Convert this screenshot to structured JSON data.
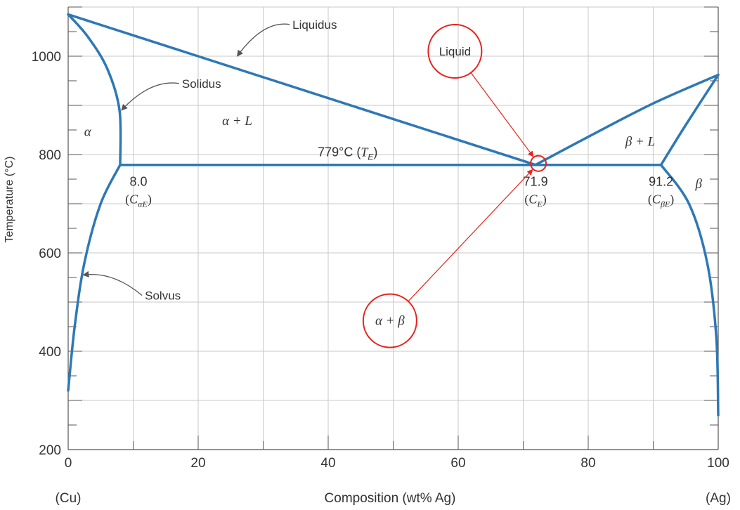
{
  "chart_data": {
    "type": "phase-diagram",
    "title": "",
    "xlabel": "Composition (wt% Ag)",
    "ylabel": "Temperature (°C)",
    "xlim": [
      0,
      100
    ],
    "ylim": [
      200,
      1100
    ],
    "x_ticks": [
      0,
      20,
      40,
      60,
      80,
      100
    ],
    "y_ticks": [
      200,
      400,
      600,
      800,
      1000
    ],
    "x_end_labels": {
      "left": "(Cu)",
      "right": "(Ag)"
    },
    "grid": true,
    "line_color": "#2e78b5",
    "annotation_color": "#e8221b",
    "curves": [
      {
        "name": "liquidus-left",
        "points": [
          [
            0,
            1085
          ],
          [
            71.9,
            779
          ]
        ]
      },
      {
        "name": "liquidus-right",
        "points": [
          [
            71.9,
            779
          ],
          [
            80,
            836
          ],
          [
            90,
            904
          ],
          [
            100,
            962
          ]
        ]
      },
      {
        "name": "solidus-alpha",
        "points": [
          [
            0,
            1085
          ],
          [
            3,
            1040
          ],
          [
            6,
            975
          ],
          [
            7.9,
            890
          ],
          [
            8.0,
            779
          ]
        ]
      },
      {
        "name": "solvus-alpha",
        "points": [
          [
            8.0,
            779
          ],
          [
            5,
            700
          ],
          [
            2.5,
            580
          ],
          [
            1,
            450
          ],
          [
            0,
            320
          ]
        ]
      },
      {
        "name": "eutectic-isotherm",
        "points": [
          [
            8.0,
            779
          ],
          [
            91.2,
            779
          ]
        ]
      },
      {
        "name": "solidus-beta",
        "points": [
          [
            91.2,
            779
          ],
          [
            95,
            860
          ],
          [
            100,
            962
          ]
        ]
      },
      {
        "name": "solvus-beta",
        "points": [
          [
            91.2,
            779
          ],
          [
            95.5,
            700
          ],
          [
            98.3,
            580
          ],
          [
            99.7,
            430
          ],
          [
            100,
            270
          ]
        ]
      }
    ],
    "eutectic_temperature": 779,
    "eutectic_label_prefix": "779°C (",
    "eutectic_label_symbol": "T",
    "eutectic_label_sub": "E",
    "eutectic_label_suffix": ")",
    "compositions": [
      {
        "value": "8.0",
        "symbol": "C",
        "sub": "αE",
        "x": 8.0
      },
      {
        "value": "71.9",
        "symbol": "C",
        "sub": "E",
        "x": 71.9
      },
      {
        "value": "91.2",
        "symbol": "C",
        "sub": "βE",
        "x": 91.2
      }
    ],
    "phase_labels": [
      {
        "text": "α",
        "x": 3,
        "y": 838
      },
      {
        "text": "α + L",
        "x": 26,
        "y": 860
      },
      {
        "text": "β + L",
        "x": 88,
        "y": 818
      },
      {
        "text": "β",
        "x": 97,
        "y": 732
      }
    ],
    "callouts": [
      {
        "text": "Liquidus",
        "text_x": 34.5,
        "text_y": 1056,
        "target_x": 26,
        "target_y": 1000
      },
      {
        "text": "Solidus",
        "text_x": 17.5,
        "text_y": 936,
        "target_x": 8.2,
        "target_y": 890
      },
      {
        "text": "Solvus",
        "text_x": 11.8,
        "text_y": 505,
        "target_x": 2.3,
        "target_y": 555
      }
    ],
    "annotations": [
      {
        "text": "Liquid",
        "x": 59.5,
        "y": 1010
      },
      {
        "text": "α + β",
        "x": 49.5,
        "y": 462
      }
    ]
  }
}
